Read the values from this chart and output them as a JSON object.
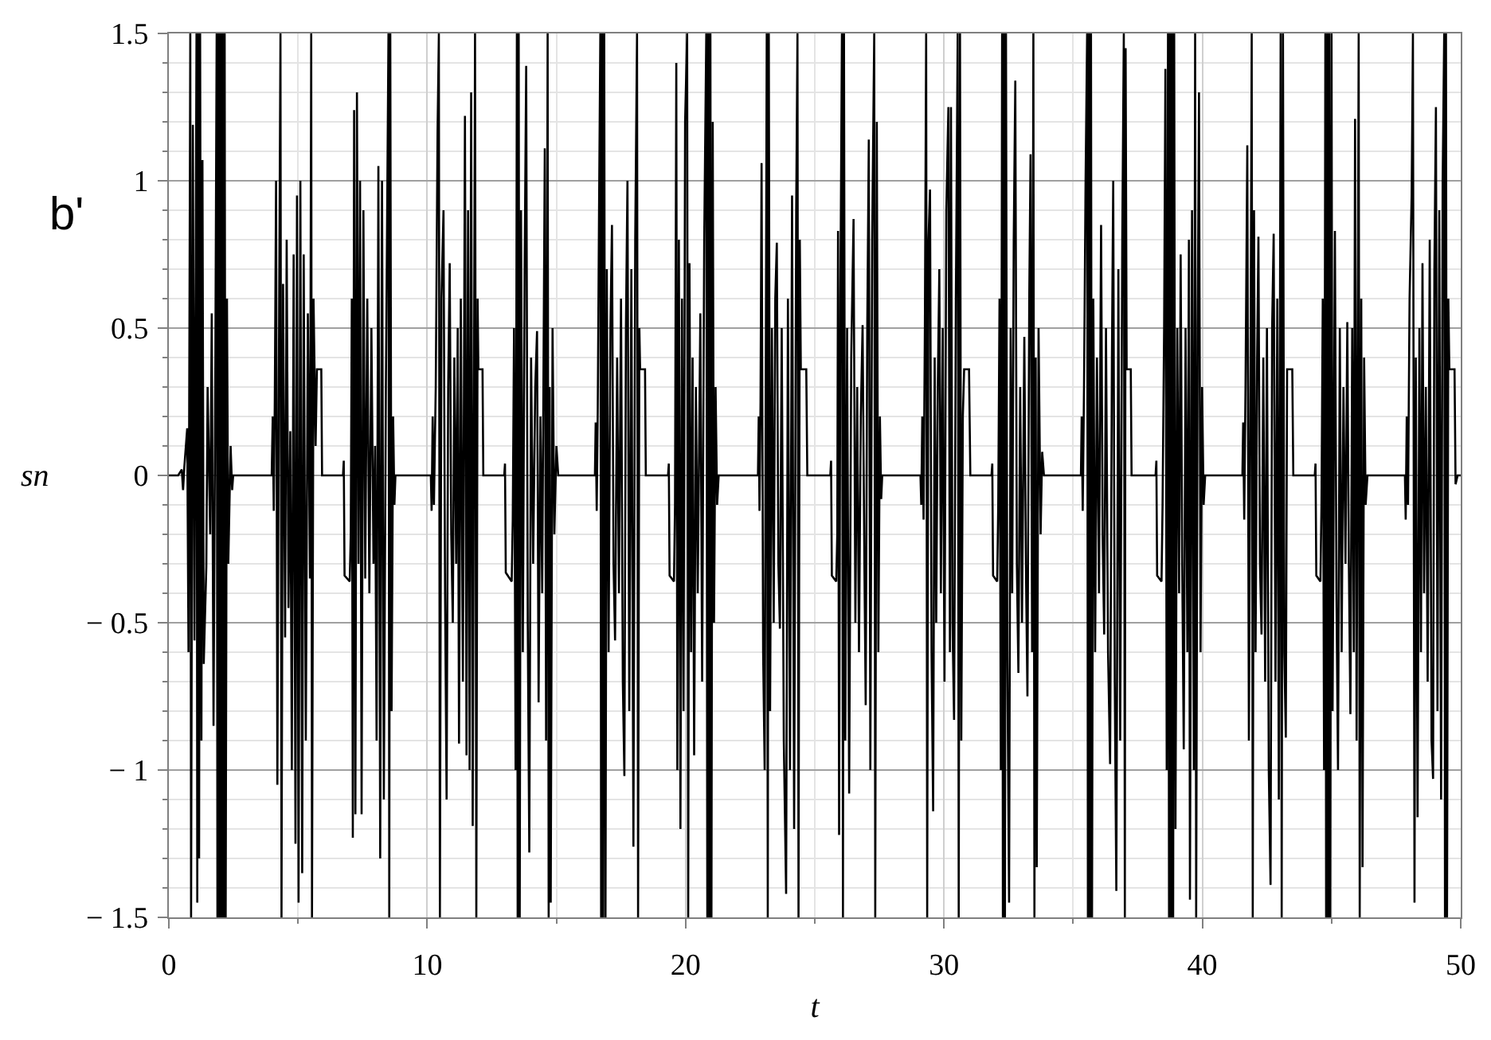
{
  "chart_data": {
    "type": "line",
    "xlabel": "t",
    "ylabel": "sn",
    "annotations": [
      "b'"
    ],
    "color": "#000000",
    "line_style": "solid",
    "grid": true,
    "xlim": [
      0,
      50
    ],
    "ylim": [
      -1.5,
      1.5
    ],
    "xticks": [
      0,
      {
        "value": 5,
        "label": null
      },
      10,
      {
        "value": 15,
        "label": null
      },
      20,
      {
        "value": 25,
        "label": null
      },
      30,
      {
        "value": 35,
        "label": null
      },
      40,
      {
        "value": 45,
        "label": null
      },
      50
    ],
    "yticks": [
      {
        "value": -1.5,
        "label": "− 1.5"
      },
      {
        "value": -1.4,
        "label": null
      },
      {
        "value": -1.3,
        "label": null
      },
      {
        "value": -1.2,
        "label": null
      },
      {
        "value": -1.1,
        "label": null
      },
      {
        "value": -1,
        "label": "− 1"
      },
      {
        "value": -0.9,
        "label": null
      },
      {
        "value": -0.8,
        "label": null
      },
      {
        "value": -0.7,
        "label": null
      },
      {
        "value": -0.6,
        "label": null
      },
      {
        "value": -0.5,
        "label": "− 0.5"
      },
      {
        "value": -0.4,
        "label": null
      },
      {
        "value": -0.3,
        "label": null
      },
      {
        "value": -0.2,
        "label": null
      },
      {
        "value": -0.1,
        "label": null
      },
      0,
      {
        "value": 0.1,
        "label": null
      },
      {
        "value": 0.2,
        "label": null
      },
      {
        "value": 0.3,
        "label": null
      },
      {
        "value": 0.4,
        "label": null
      },
      0.5,
      {
        "value": 0.6,
        "label": null
      },
      {
        "value": 0.7,
        "label": null
      },
      {
        "value": 0.8,
        "label": null
      },
      {
        "value": 0.9,
        "label": null
      },
      1,
      {
        "value": 1.1,
        "label": null
      },
      {
        "value": 1.2,
        "label": null
      },
      {
        "value": 1.3,
        "label": null
      },
      {
        "value": 1.4,
        "label": null
      },
      1.5
    ],
    "x": [
      0,
      0.36,
      0.5,
      0.55,
      0.6,
      0.71,
      0.76,
      0.83,
      0.86,
      0.93,
      0.99,
      1.07,
      1.1,
      1.14,
      1.17,
      1.21,
      1.26,
      1.3,
      1.35,
      1.45,
      1.5,
      1.6,
      1.66,
      1.73,
      1.8,
      1.85,
      1.88,
      1.92,
      1.96,
      2.0,
      2.04,
      2.08,
      2.12,
      2.16,
      2.2,
      2.25,
      2.3,
      2.39,
      2.45,
      2.49,
      3.98,
      4.02,
      4.06,
      4.1,
      4.15,
      4.2,
      4.27,
      4.32,
      4.36,
      4.42,
      4.5,
      4.56,
      4.63,
      4.7,
      4.76,
      4.83,
      4.9,
      4.96,
      5.02,
      5.09,
      5.16,
      5.22,
      5.3,
      5.38,
      5.46,
      5.51,
      5.54,
      5.6,
      5.68,
      5.73,
      5.9,
      5.93,
      6.74,
      6.77,
      6.8,
      7.0,
      7.04,
      7.08,
      7.12,
      7.17,
      7.22,
      7.28,
      7.34,
      7.4,
      7.46,
      7.53,
      7.6,
      7.68,
      7.76,
      7.84,
      7.92,
      7.98,
      8.04,
      8.11,
      8.18,
      8.25,
      8.32,
      8.4,
      8.5,
      8.53,
      8.57,
      8.62,
      8.68,
      8.73,
      8.77,
      10.14,
      10.17,
      10.21,
      10.26,
      10.33,
      10.4,
      10.45,
      10.49,
      10.55,
      10.63,
      10.69,
      10.75,
      10.81,
      10.87,
      10.93,
      10.99,
      11.05,
      11.12,
      11.18,
      11.23,
      11.3,
      11.38,
      11.46,
      11.52,
      11.58,
      11.64,
      11.7,
      11.76,
      11.85,
      11.9,
      11.95,
      11.98,
      12.14,
      12.17,
      12.98,
      13.01,
      13.04,
      13.27,
      13.31,
      13.36,
      13.42,
      13.47,
      13.5,
      13.54,
      13.58,
      13.63,
      13.7,
      13.77,
      13.83,
      13.89,
      13.95,
      14.02,
      14.1,
      14.18,
      14.25,
      14.31,
      14.38,
      14.45,
      14.55,
      14.6,
      14.66,
      14.7,
      14.74,
      14.78,
      14.85,
      14.92,
      15.0,
      15.07,
      16.49,
      16.52,
      16.56,
      16.6,
      16.65,
      16.7,
      16.73,
      16.77,
      16.81,
      16.85,
      16.9,
      16.95,
      17.02,
      17.09,
      17.15,
      17.21,
      17.27,
      17.35,
      17.42,
      17.5,
      17.57,
      17.63,
      17.69,
      17.75,
      17.82,
      17.9,
      17.98,
      18.05,
      18.12,
      18.16,
      18.21,
      18.24,
      18.43,
      18.46,
      19.32,
      19.35,
      19.38,
      19.55,
      19.59,
      19.64,
      19.68,
      19.74,
      19.8,
      19.86,
      19.92,
      19.98,
      20.06,
      20.1,
      20.15,
      20.21,
      20.27,
      20.33,
      20.4,
      20.47,
      20.57,
      20.64,
      20.72,
      20.8,
      20.84,
      20.88,
      20.92,
      20.96,
      21.0,
      21.05,
      21.1,
      21.16,
      21.22,
      21.28,
      22.8,
      22.83,
      22.86,
      22.9,
      22.94,
      23.0,
      23.06,
      23.14,
      23.18,
      23.22,
      23.27,
      23.34,
      23.41,
      23.47,
      23.53,
      23.59,
      23.65,
      23.72,
      23.8,
      23.89,
      23.96,
      24.04,
      24.12,
      24.2,
      24.28,
      24.33,
      24.37,
      24.42,
      24.46,
      24.67,
      24.71,
      25.6,
      25.63,
      25.66,
      25.83,
      25.87,
      25.9,
      25.94,
      25.99,
      26.05,
      26.09,
      26.13,
      26.18,
      26.25,
      26.33,
      26.41,
      26.5,
      26.57,
      26.64,
      26.71,
      26.78,
      26.85,
      26.92,
      26.97,
      27.03,
      27.09,
      27.15,
      27.22,
      27.3,
      27.34,
      27.4,
      27.46,
      27.52,
      27.57,
      27.61,
      29.09,
      29.12,
      29.16,
      29.21,
      29.26,
      29.31,
      29.35,
      29.4,
      29.46,
      29.52,
      29.58,
      29.64,
      29.7,
      29.76,
      29.82,
      29.88,
      29.95,
      30.02,
      30.09,
      30.17,
      30.23,
      30.27,
      30.33,
      30.39,
      30.46,
      30.53,
      30.57,
      30.62,
      30.67,
      30.73,
      30.78,
      30.97,
      31.02,
      31.84,
      31.87,
      31.9,
      32.06,
      32.1,
      32.15,
      32.2,
      32.25,
      32.28,
      32.32,
      32.36,
      32.4,
      32.45,
      32.52,
      32.58,
      32.64,
      32.7,
      32.76,
      32.82,
      32.88,
      32.95,
      33.02,
      33.11,
      33.17,
      33.23,
      33.3,
      33.35,
      33.41,
      33.46,
      33.5,
      33.55,
      33.59,
      33.66,
      33.74,
      33.8,
      33.87,
      35.3,
      35.33,
      35.37,
      35.42,
      35.48,
      35.54,
      35.57,
      35.61,
      35.65,
      35.69,
      35.73,
      35.78,
      35.85,
      35.92,
      36.0,
      36.08,
      36.14,
      36.2,
      36.27,
      36.35,
      36.43,
      36.5,
      36.55,
      36.61,
      36.67,
      36.75,
      36.82,
      36.9,
      36.96,
      37.0,
      37.03,
      37.07,
      37.23,
      37.26,
      38.19,
      38.22,
      38.25,
      38.42,
      38.46,
      38.52,
      38.57,
      38.62,
      38.67,
      38.71,
      38.75,
      38.79,
      38.83,
      38.87,
      38.91,
      38.96,
      39.03,
      39.1,
      39.16,
      39.22,
      39.28,
      39.35,
      39.42,
      39.48,
      39.52,
      39.6,
      39.67,
      39.72,
      39.76,
      39.82,
      39.87,
      39.93,
      39.99,
      40.05,
      40.11,
      41.55,
      41.58,
      41.62,
      41.67,
      41.74,
      41.8,
      41.87,
      41.91,
      41.95,
      42.0,
      42.06,
      42.12,
      42.17,
      42.23,
      42.29,
      42.36,
      42.43,
      42.5,
      42.57,
      42.64,
      42.7,
      42.76,
      42.83,
      42.9,
      42.96,
      43.03,
      43.07,
      43.12,
      43.17,
      43.23,
      43.28,
      43.48,
      43.52,
      44.35,
      44.38,
      44.41,
      44.57,
      44.61,
      44.66,
      44.71,
      44.76,
      44.79,
      44.83,
      44.87,
      44.91,
      44.95,
      45.0,
      45.04,
      45.13,
      45.19,
      45.25,
      45.32,
      45.39,
      45.46,
      45.54,
      45.61,
      45.67,
      45.73,
      45.8,
      45.86,
      45.91,
      45.97,
      46.05,
      46.09,
      46.15,
      46.2,
      46.26,
      46.32,
      46.39,
      47.84,
      47.87,
      47.91,
      47.96,
      48.02,
      48.1,
      48.15,
      48.21,
      48.26,
      48.33,
      48.4,
      48.46,
      48.52,
      48.58,
      48.65,
      48.72,
      48.8,
      48.87,
      48.93,
      48.98,
      49.04,
      49.1,
      49.17,
      49.24,
      49.3,
      49.36,
      49.39,
      49.43,
      49.47,
      49.52,
      49.56,
      49.76,
      49.8,
      49.88,
      50
    ],
    "values": [
      0,
      0,
      0.02,
      -0.05,
      0.03,
      0.16,
      -0.6,
      1.5,
      -1.5,
      1.19,
      -0.56,
      1.5,
      -1.45,
      1.5,
      -1.3,
      1.5,
      -0.9,
      1.07,
      -0.64,
      -0.31,
      0.3,
      -0.2,
      0.55,
      -0.85,
      0.4,
      1.5,
      -1.5,
      1.5,
      -1.5,
      1.5,
      -1.5,
      1.5,
      -1.5,
      1.5,
      -1.5,
      0.6,
      -0.3,
      0.1,
      -0.05,
      0,
      0,
      0.2,
      -0.12,
      0.25,
      1.0,
      -1.05,
      0.6,
      1.5,
      -1.5,
      0.65,
      -0.55,
      0.8,
      -0.45,
      0.15,
      -1.0,
      0.75,
      -1.25,
      0.95,
      -1.45,
      1.0,
      -1.35,
      0.75,
      -0.9,
      0.55,
      -0.35,
      1.5,
      -1.5,
      0.6,
      0.1,
      0.36,
      0.36,
      0,
      0,
      0.05,
      -0.34,
      -0.36,
      -0.2,
      0.6,
      -1.23,
      1.24,
      -1.15,
      1.3,
      -0.3,
      1.0,
      -1.15,
      0.9,
      -0.35,
      0.6,
      -0.4,
      0.5,
      -0.3,
      0.1,
      -0.9,
      1.05,
      -1.3,
      1.0,
      -1.1,
      0.3,
      1.5,
      -1.5,
      1.5,
      -0.8,
      0.2,
      -0.1,
      0,
      0,
      -0.12,
      0.2,
      -0.1,
      0.3,
      1.17,
      1.5,
      -1.5,
      0.6,
      0.9,
      -0.4,
      -1.1,
      0.3,
      0.72,
      -0.2,
      -0.5,
      0.4,
      -0.3,
      0.5,
      -0.91,
      0.6,
      -0.7,
      1.22,
      -0.95,
      0.9,
      -1.0,
      1.3,
      -1.19,
      1.5,
      -1.5,
      0.6,
      0.36,
      0.36,
      0,
      0,
      0.04,
      -0.33,
      -0.36,
      -0.15,
      0.5,
      -1.0,
      1.5,
      -1.5,
      1.5,
      -1.5,
      0.9,
      -0.6,
      0.7,
      1.39,
      -0.5,
      -1.28,
      0.4,
      -0.3,
      0.3,
      0.49,
      -0.77,
      0.2,
      -0.4,
      1.11,
      -0.9,
      1.5,
      -1.5,
      0.3,
      -1.45,
      0.5,
      -0.2,
      0.1,
      0,
      0,
      0.18,
      -0.12,
      0.22,
      0.9,
      1.5,
      -1.5,
      1.5,
      -1.5,
      1.5,
      -1.5,
      0.7,
      -0.6,
      0.5,
      0.85,
      -0.3,
      -0.56,
      0.4,
      -0.4,
      0.6,
      -0.7,
      -1.02,
      0.5,
      1.0,
      -0.8,
      0.7,
      -1.26,
      0.8,
      1.5,
      -1.5,
      0.5,
      0.36,
      0.36,
      0,
      0,
      0.04,
      -0.34,
      -0.36,
      -0.1,
      1.4,
      -1.0,
      0.8,
      -1.2,
      0.6,
      -0.8,
      1.2,
      1.5,
      -1.5,
      0.72,
      -0.6,
      0.4,
      -0.95,
      0.3,
      -0.4,
      0.55,
      -0.7,
      0.8,
      1.5,
      -1.5,
      1.5,
      -1.5,
      1.5,
      -1.5,
      1.2,
      -0.5,
      0.3,
      -0.1,
      0,
      0,
      0.2,
      -0.12,
      0.25,
      1.06,
      -0.6,
      -1.0,
      1.5,
      -1.5,
      1.5,
      -0.8,
      0.5,
      -0.5,
      0.6,
      0.79,
      -0.3,
      -0.52,
      0.5,
      -0.9,
      -1.42,
      0.6,
      -1.0,
      0.95,
      -1.2,
      0.9,
      1.5,
      -1.5,
      0.8,
      0.36,
      0.36,
      0,
      0,
      0.05,
      -0.34,
      -0.36,
      -0.2,
      0.83,
      -1.22,
      0.6,
      1.5,
      -1.5,
      1.5,
      -0.9,
      0.5,
      -1.08,
      0.4,
      0.87,
      -0.5,
      0.3,
      -0.6,
      0.2,
      0.51,
      -0.3,
      -0.78,
      0.5,
      1.14,
      -1.0,
      0.8,
      1.5,
      -1.5,
      1.2,
      -0.6,
      0.2,
      -0.08,
      0,
      0,
      -0.1,
      0.2,
      -0.15,
      0.5,
      1.5,
      -1.5,
      0.8,
      0.97,
      -0.6,
      -1.14,
      0.4,
      -0.5,
      0.3,
      0.7,
      -0.4,
      0.5,
      -0.7,
      0.9,
      1.25,
      -0.6,
      1.25,
      -0.5,
      -0.83,
      0.6,
      1.5,
      -1.5,
      1.5,
      -0.9,
      0.2,
      0.36,
      0.36,
      0,
      0,
      0.04,
      -0.34,
      -0.36,
      -0.1,
      0.6,
      -1.0,
      1.5,
      -1.5,
      1.5,
      -1.5,
      1.5,
      -0.6,
      -1.45,
      0.5,
      -0.4,
      0.8,
      1.34,
      -0.3,
      -0.67,
      0.3,
      -0.5,
      0.47,
      -0.3,
      -0.75,
      0.6,
      1.09,
      -0.6,
      1.5,
      -1.5,
      0.4,
      -1.33,
      0.5,
      -0.2,
      0.08,
      0,
      0,
      0.2,
      -0.12,
      0.3,
      1.0,
      1.5,
      -1.5,
      1.5,
      -1.5,
      1.5,
      -1.5,
      0.6,
      -0.6,
      0.4,
      -0.4,
      0.85,
      -0.2,
      -0.54,
      0.5,
      -0.6,
      -0.98,
      0.4,
      1.0,
      -0.7,
      -1.41,
      0.7,
      -0.9,
      0.8,
      1.5,
      -1.5,
      1.45,
      0.36,
      0.36,
      0,
      0,
      0.05,
      -0.34,
      -0.36,
      -0.1,
      0.5,
      1.38,
      -1.0,
      1.5,
      -1.5,
      1.5,
      -1.5,
      1.5,
      -1.5,
      1.5,
      -1.2,
      0.5,
      -0.4,
      0.75,
      -0.3,
      -0.93,
      0.5,
      -0.6,
      0.8,
      -1.44,
      0.9,
      -1.0,
      1.5,
      -1.5,
      0.5,
      1.3,
      -0.6,
      0.3,
      -0.1,
      0,
      0,
      0.18,
      -0.15,
      0.3,
      1.12,
      -0.9,
      0.5,
      1.5,
      -1.5,
      0.9,
      -0.6,
      0.4,
      0.81,
      -0.3,
      -0.54,
      0.4,
      -0.7,
      0.5,
      -1.0,
      -1.39,
      0.5,
      0.82,
      -0.7,
      0.6,
      -1.1,
      1.5,
      -1.5,
      1.5,
      -0.6,
      -0.89,
      0.36,
      0.36,
      0,
      0,
      0.04,
      -0.34,
      -0.36,
      -0.1,
      0.6,
      -1.0,
      1.5,
      -1.5,
      1.5,
      -1.5,
      1.5,
      -1.5,
      1.5,
      -0.8,
      0.83,
      -0.4,
      -1.0,
      0.5,
      -0.6,
      0.3,
      -0.3,
      0.52,
      -0.3,
      -0.81,
      0.5,
      -0.6,
      1.21,
      -0.9,
      1.5,
      -1.5,
      0.6,
      -1.33,
      0.4,
      -0.1,
      0,
      0,
      -0.15,
      0.2,
      -0.1,
      0.6,
      0.95,
      1.5,
      -1.45,
      0.4,
      -1.16,
      0.5,
      -0.6,
      0.72,
      -0.4,
      0.3,
      -0.7,
      0.8,
      -0.9,
      -1.03,
      0.7,
      1.25,
      -0.8,
      0.9,
      -1.1,
      1.0,
      1.5,
      -1.5,
      1.5,
      -1.5,
      0.6,
      0.36,
      0.36,
      -0.03,
      0,
      0
    ]
  }
}
